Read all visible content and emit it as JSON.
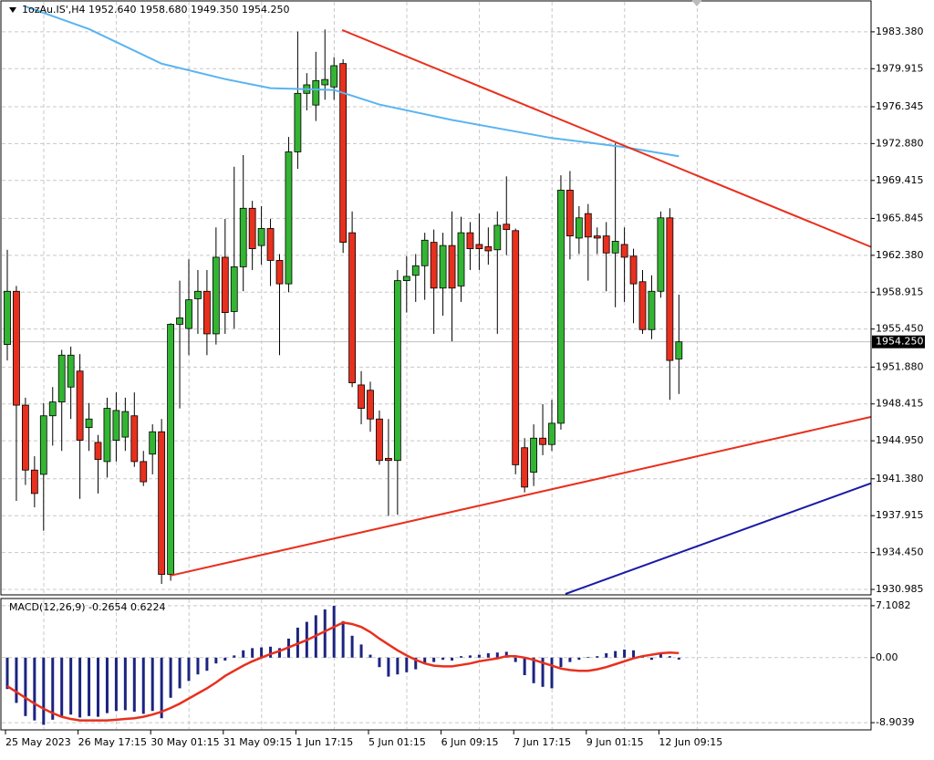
{
  "chart_data": [
    {
      "type": "candlestick",
      "title": "1ozAu.IS',H4  1952.640 1958.680 1949.350 1954.250",
      "up_color": "#33b533",
      "down_color": "#e8301e",
      "open": [
        1954.0,
        1959.0,
        1948.3,
        1942.2,
        1941.8,
        1947.3,
        1948.6,
        1950.0,
        1951.5,
        1946.2,
        1944.8,
        1943.0,
        1945.0,
        1945.3,
        1947.3,
        1943.0,
        1943.7,
        1945.8,
        1932.4,
        1955.9,
        1955.5,
        1958.3,
        1959.0,
        1955.0,
        1962.2,
        1957.1,
        1961.3,
        1966.8,
        1963.3,
        1964.9,
        1961.9,
        1959.7,
        1972.1,
        1977.6,
        1976.5,
        1978.4,
        1978.2,
        1980.4,
        1964.5,
        1950.2,
        1949.7,
        1947.0,
        1943.3,
        1943.1,
        1960.0,
        1960.5,
        1961.4,
        1963.6,
        1959.3,
        1963.3,
        1959.5,
        1964.5,
        1963.4,
        1963.2,
        1962.9,
        1965.3,
        1964.7,
        1944.3,
        1942.0,
        1945.2,
        1944.6,
        1946.6,
        1968.5,
        1964.0,
        1966.3,
        1964.2,
        1964.2,
        1962.6,
        1963.4,
        1962.3,
        1959.9,
        1955.4,
        1959.0,
        1965.9,
        1952.64
      ],
      "high": [
        1962.9,
        1959.5,
        1949.0,
        1943.5,
        1948.5,
        1950.0,
        1953.5,
        1953.8,
        1953.1,
        1948.5,
        1945.5,
        1949.0,
        1949.5,
        1949.0,
        1949.5,
        1944.0,
        1946.5,
        1947.0,
        1956.0,
        1960.0,
        1962.0,
        1961.0,
        1961.0,
        1965.0,
        1965.8,
        1970.7,
        1971.8,
        1967.5,
        1967.0,
        1965.8,
        1962.5,
        1973.5,
        1983.4,
        1979.5,
        1981.5,
        1983.6,
        1981.0,
        1980.8,
        1966.5,
        1951.5,
        1950.5,
        1947.8,
        1947.0,
        1961.0,
        1962.3,
        1962.5,
        1964.5,
        1964.8,
        1964.5,
        1966.5,
        1966.0,
        1965.5,
        1966.3,
        1965.0,
        1966.5,
        1969.8,
        1964.9,
        1945.2,
        1946.5,
        1948.4,
        1948.8,
        1969.9,
        1970.3,
        1967.0,
        1967.2,
        1965.0,
        1965.5,
        1972.9,
        1965.0,
        1963.0,
        1961.0,
        1960.5,
        1966.5,
        1966.8,
        1958.68
      ],
      "low": [
        1952.5,
        1939.3,
        1940.8,
        1938.7,
        1936.5,
        1944.5,
        1944.0,
        1947.0,
        1939.5,
        1944.0,
        1940.0,
        1941.5,
        1943.0,
        1944.0,
        1942.5,
        1940.7,
        1941.8,
        1931.5,
        1931.8,
        1948.0,
        1953.0,
        1955.0,
        1953.0,
        1954.0,
        1955.0,
        1955.5,
        1959.0,
        1961.0,
        1961.5,
        1959.5,
        1953.0,
        1958.9,
        1970.5,
        1976.0,
        1975.0,
        1977.0,
        1977.0,
        1962.6,
        1950.0,
        1946.5,
        1945.8,
        1942.7,
        1937.9,
        1938.0,
        1957.0,
        1958.0,
        1958.2,
        1955.0,
        1956.7,
        1954.3,
        1958.0,
        1961.0,
        1961.0,
        1961.5,
        1955.0,
        1962.4,
        1941.8,
        1940.1,
        1940.7,
        1943.6,
        1944.0,
        1946.0,
        1962.0,
        1962.5,
        1960.0,
        1962.5,
        1959.0,
        1957.5,
        1958.0,
        1956.0,
        1955.0,
        1954.5,
        1958.4,
        1948.8,
        1949.35
      ],
      "close": [
        1959.0,
        1948.3,
        1942.2,
        1940.0,
        1947.3,
        1948.6,
        1953.0,
        1953.0,
        1945.0,
        1947.0,
        1943.2,
        1948.0,
        1947.8,
        1947.7,
        1943.0,
        1941.1,
        1945.8,
        1932.4,
        1955.9,
        1956.5,
        1958.2,
        1959.0,
        1955.0,
        1962.2,
        1957.0,
        1961.3,
        1966.8,
        1963.0,
        1964.9,
        1961.9,
        1959.7,
        1972.1,
        1977.6,
        1978.4,
        1978.8,
        1978.9,
        1980.2,
        1963.6,
        1950.4,
        1948.0,
        1947.0,
        1943.1,
        1943.1,
        1960.0,
        1960.4,
        1961.4,
        1963.8,
        1959.3,
        1963.3,
        1959.3,
        1964.5,
        1963.0,
        1963.0,
        1962.8,
        1965.2,
        1964.8,
        1942.7,
        1940.6,
        1945.2,
        1944.6,
        1946.6,
        1968.5,
        1964.2,
        1965.9,
        1964.1,
        1964.0,
        1962.6,
        1963.7,
        1962.2,
        1959.7,
        1955.4,
        1959.0,
        1965.9,
        1952.5,
        1954.25
      ],
      "ma": {
        "color": "#5ab4f0",
        "x": [
          2,
          9,
          17,
          24,
          29,
          36,
          41,
          49,
          60,
          68,
          74
        ],
        "values": [
          1985.77,
          1983.64,
          1980.39,
          1978.94,
          1978.09,
          1977.92,
          1976.55,
          1975.1,
          1973.4,
          1972.55,
          1971.69
        ]
      },
      "trendlines": [
        {
          "color": "#e8301e",
          "x": [
            36.9,
            95.2
          ],
          "values": [
            1983.55,
            1963.16
          ]
        },
        {
          "color": "#e8301e",
          "x": [
            17.9,
            95.2
          ],
          "values": [
            1932.27,
            1947.2
          ]
        },
        {
          "color": "#1a1aa6",
          "x": [
            61.5,
            95.2
          ],
          "values": [
            1930.56,
            1940.97
          ]
        }
      ],
      "last_price": {
        "value": 1954.25,
        "label": "1954.250"
      },
      "ylim": [
        1930.56,
        1986.2
      ],
      "yticks": [
        {
          "value": 1983.38,
          "label": "1983.380"
        },
        1979.915,
        1976.345,
        {
          "value": 1972.88,
          "label": "1972.880"
        },
        1969.415,
        1965.845,
        {
          "value": 1962.38,
          "label": "1962.380"
        },
        1958.915,
        {
          "value": 1955.45,
          "label": "1955.450"
        },
        {
          "value": 1951.88,
          "label": "1951.880"
        },
        1948.415,
        {
          "value": 1944.95,
          "label": "1944.950"
        },
        {
          "value": 1941.38,
          "label": "1941.380"
        },
        1937.915,
        {
          "value": 1934.45,
          "label": "1934.450"
        },
        1930.985
      ],
      "grid": true
    },
    {
      "type": "macd",
      "title": "MACD(12,26,9) -0.2654 0.6224",
      "histogram_color": "#1c2480",
      "signal_color": "#e8301e",
      "histogram": [
        -4.3,
        -6.2,
        -8.0,
        -8.6,
        -9.2,
        -8.5,
        -8.0,
        -7.8,
        -8.2,
        -8.0,
        -8.1,
        -7.6,
        -7.3,
        -7.2,
        -7.4,
        -7.7,
        -7.3,
        -8.3,
        -5.5,
        -4.2,
        -3.2,
        -2.3,
        -1.8,
        -0.8,
        -0.4,
        0.3,
        1.0,
        1.3,
        1.4,
        1.5,
        1.3,
        2.6,
        4.1,
        4.9,
        5.8,
        6.6,
        7.1,
        5.0,
        3.0,
        1.8,
        0.4,
        -1.3,
        -2.6,
        -2.3,
        -2.0,
        -1.6,
        -0.9,
        -0.6,
        -0.3,
        -0.4,
        0.2,
        0.3,
        0.4,
        0.6,
        0.7,
        0.8,
        -0.6,
        -2.4,
        -3.5,
        -4.0,
        -4.2,
        -1.3,
        -0.6,
        -0.3,
        0.1,
        0.2,
        0.6,
        0.9,
        1.1,
        1.0,
        0.2,
        -0.3,
        0.5,
        0.2,
        -0.2654
      ],
      "signal": [
        -3.9,
        -4.7,
        -5.5,
        -6.3,
        -7.0,
        -7.6,
        -8.1,
        -8.4,
        -8.6,
        -8.6,
        -8.6,
        -8.6,
        -8.5,
        -8.4,
        -8.3,
        -8.1,
        -7.8,
        -7.4,
        -6.9,
        -6.3,
        -5.6,
        -4.9,
        -4.2,
        -3.4,
        -2.5,
        -1.8,
        -1.1,
        -0.5,
        0.0,
        0.5,
        0.9,
        1.4,
        1.9,
        2.4,
        3.0,
        3.6,
        4.2,
        4.8,
        4.6,
        4.2,
        3.5,
        2.6,
        1.8,
        1.0,
        0.3,
        -0.3,
        -0.8,
        -1.1,
        -1.2,
        -1.2,
        -1.0,
        -0.8,
        -0.5,
        -0.3,
        -0.1,
        0.2,
        0.2,
        0.0,
        -0.3,
        -0.7,
        -1.1,
        -1.5,
        -1.7,
        -1.8,
        -1.8,
        -1.6,
        -1.3,
        -0.9,
        -0.5,
        -0.1,
        0.2,
        0.4,
        0.6,
        0.7,
        0.6224
      ],
      "ylim": [
        -9.77,
        7.97
      ],
      "yticks": [
        7.1082,
        {
          "value": 0,
          "label": "0.00"
        },
        -8.9039
      ],
      "xticks": [
        {
          "value": 0,
          "label": "25 May 2023"
        },
        {
          "value": 8,
          "label": "26 May 17:15"
        },
        {
          "value": 16,
          "label": "30 May 01:15"
        },
        {
          "value": 24,
          "label": "31 May 09:15"
        },
        {
          "value": 32,
          "label": "1 Jun 17:15"
        },
        {
          "value": 40,
          "label": "5 Jun 01:15"
        },
        {
          "value": 48,
          "label": "6 Jun 09:15"
        },
        {
          "value": 56,
          "label": "7 Jun 17:15"
        },
        {
          "value": 64,
          "label": "9 Jun 01:15"
        },
        {
          "value": 72,
          "label": "12 Jun 09:15"
        }
      ],
      "grid": true
    }
  ]
}
